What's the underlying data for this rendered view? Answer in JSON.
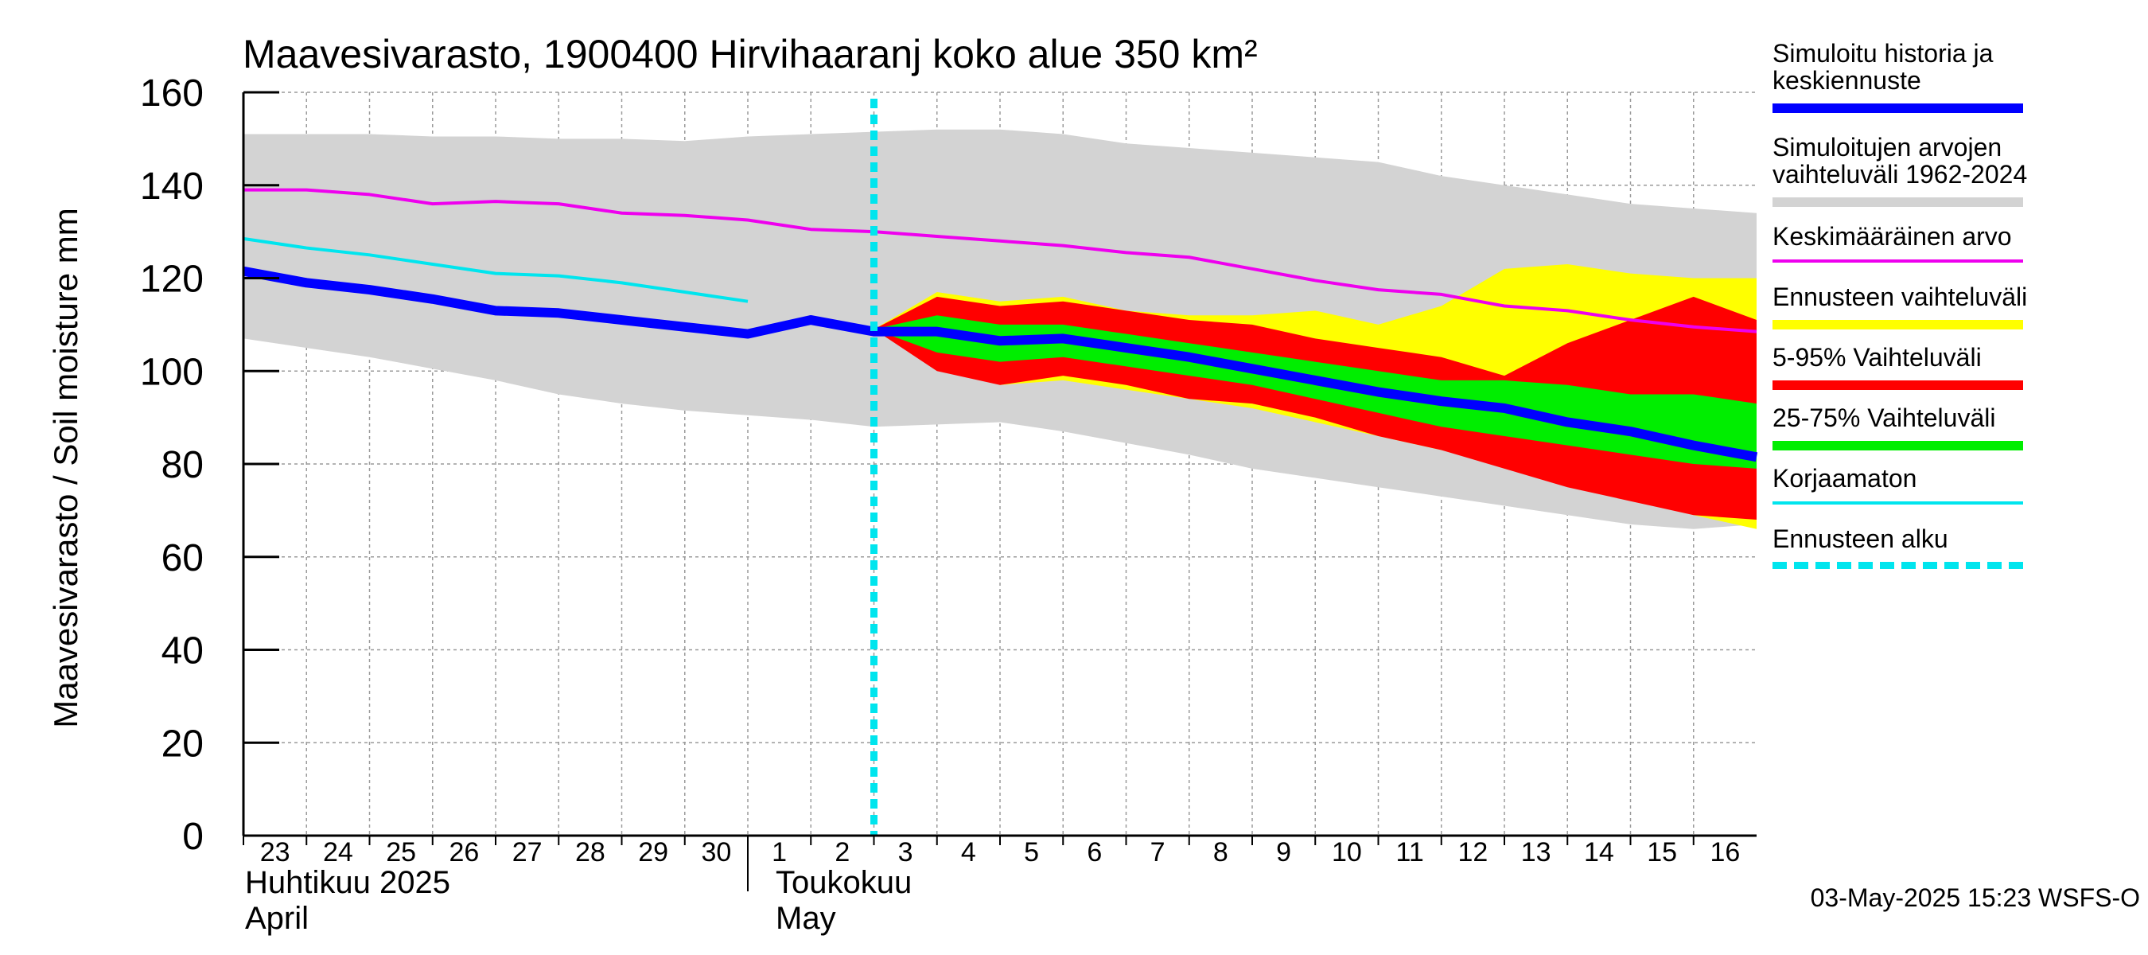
{
  "chart_data": {
    "type": "area",
    "title": "Maavesivarasto, 1900400 Hirvihaaranj koko alue 350 km²",
    "ylabel": "Maavesivarasto / Soil moisture   mm",
    "ylim": [
      0,
      160
    ],
    "yticks": [
      0,
      20,
      40,
      60,
      80,
      100,
      120,
      140,
      160
    ],
    "grid": true,
    "xlim": [
      0,
      24
    ],
    "x_tick_labels": [
      "23",
      "24",
      "25",
      "26",
      "27",
      "28",
      "29",
      "30",
      "1",
      "2",
      "3",
      "4",
      "5",
      "6",
      "7",
      "8",
      "9",
      "10",
      "11",
      "12",
      "13",
      "14",
      "15",
      "16"
    ],
    "month_labels": [
      {
        "fi": "Huhtikuu  2025",
        "en": "April",
        "start_index": 0
      },
      {
        "fi": "Toukokuu",
        "en": "May",
        "start_index": 8
      }
    ],
    "forecast_start": 10,
    "legend_placement": "right",
    "timestamp": "03-May-2025 15:23 WSFS-O",
    "series": [
      {
        "name": "Simuloitujen arvojen vaihteluväli 1962-2024",
        "kind": "band",
        "color": "#d3d3d3",
        "x": [
          0,
          1,
          2,
          3,
          4,
          5,
          6,
          7,
          8,
          9,
          10,
          11,
          12,
          13,
          14,
          15,
          16,
          17,
          18,
          19,
          20,
          21,
          22,
          23,
          24
        ],
        "upper": [
          151,
          151,
          151,
          150.5,
          150.5,
          150,
          150,
          149.5,
          150.5,
          151,
          151.5,
          152,
          152,
          151,
          149,
          148,
          147,
          146,
          145,
          142,
          140,
          138,
          136,
          135,
          134
        ],
        "lower": [
          107,
          105,
          103,
          100.5,
          98,
          95,
          93,
          91.5,
          90.5,
          89.5,
          88,
          88.5,
          89,
          87,
          84.5,
          82,
          79,
          77,
          75,
          73,
          71,
          69,
          67,
          66,
          67
        ]
      },
      {
        "name": "Ennusteen vaihteluväli",
        "kind": "band",
        "color": "#ffff00",
        "x": [
          10,
          11,
          12,
          13,
          14,
          15,
          16,
          17,
          18,
          19,
          20,
          21,
          22,
          23,
          24
        ],
        "upper": [
          109,
          117,
          115,
          116,
          113,
          112,
          112,
          113,
          110,
          114,
          122,
          123,
          121,
          120,
          120
        ],
        "lower": [
          109,
          101,
          97,
          98,
          96,
          94,
          92,
          89,
          86,
          83,
          80,
          77,
          73,
          69,
          66
        ]
      },
      {
        "name": "5-95% Vaihteluväli",
        "kind": "band",
        "color": "#ff0000",
        "x": [
          10,
          11,
          12,
          13,
          14,
          15,
          16,
          17,
          18,
          19,
          20,
          21,
          22,
          23,
          24
        ],
        "upper": [
          109,
          116,
          114,
          115,
          113,
          111,
          110,
          107,
          105,
          103,
          99,
          106,
          111,
          116,
          111
        ],
        "lower": [
          109,
          100,
          97,
          99,
          97,
          94,
          93,
          90,
          86,
          83,
          79,
          75,
          72,
          69,
          68
        ]
      },
      {
        "name": "25-75% Vaihteluväli",
        "kind": "band",
        "color": "#00ee00",
        "x": [
          10,
          11,
          12,
          13,
          14,
          15,
          16,
          17,
          18,
          19,
          20,
          21,
          22,
          23,
          24
        ],
        "upper": [
          109,
          112,
          110,
          110,
          108,
          106,
          104,
          102,
          100,
          98,
          98,
          97,
          95,
          95,
          93
        ],
        "lower": [
          109,
          104,
          102,
          103,
          101,
          99,
          97,
          94,
          91,
          88,
          86,
          84,
          82,
          80,
          79
        ]
      },
      {
        "name": "Keskimääräinen arvo",
        "kind": "line",
        "color": "#ee00ee",
        "width": 4,
        "x": [
          0,
          1,
          2,
          3,
          4,
          5,
          6,
          7,
          8,
          9,
          10,
          11,
          12,
          13,
          14,
          15,
          16,
          17,
          18,
          19,
          20,
          21,
          22,
          23,
          24
        ],
        "values": [
          139,
          139,
          138,
          136,
          136.5,
          136,
          134,
          133.5,
          132.5,
          130.5,
          130,
          129,
          128,
          127,
          125.5,
          124.5,
          122,
          119.5,
          117.5,
          116.5,
          114,
          113,
          111,
          109.5,
          108.5
        ]
      },
      {
        "name": "Korjaamaton",
        "kind": "line",
        "color": "#00e5ee",
        "width": 4,
        "x": [
          0,
          1,
          2,
          3,
          4,
          5,
          6,
          7,
          8
        ],
        "values": [
          128.5,
          126.5,
          125,
          123,
          121,
          120.5,
          119,
          117,
          115
        ]
      },
      {
        "name": "Simuloitu historia ja keskiennuste",
        "kind": "line",
        "color": "#0000ff",
        "width": 12,
        "x": [
          0,
          1,
          2,
          3,
          4,
          5,
          6,
          7,
          8,
          9,
          10,
          11,
          12,
          13,
          14,
          15,
          16,
          17,
          18,
          19,
          20,
          21,
          22,
          23,
          24
        ],
        "values": [
          121.5,
          119,
          117.5,
          115.5,
          113,
          112.5,
          111,
          109.5,
          108,
          111,
          108.5,
          108.5,
          106.5,
          107,
          105,
          103,
          100.5,
          98,
          95.5,
          93.5,
          92,
          89,
          87,
          84,
          81.5
        ]
      }
    ]
  },
  "legend": [
    {
      "label": "Simuloitu historia ja\nkeskiennuste",
      "color": "#0000ff",
      "style": "thick"
    },
    {
      "label": "Simuloitujen arvojen\nvaihteluväli 1962-2024",
      "color": "#d3d3d3",
      "style": "thick"
    },
    {
      "label": "Keskimääräinen arvo",
      "color": "#ee00ee",
      "style": "thin"
    },
    {
      "label": "Ennusteen vaihteluväli",
      "color": "#ffff00",
      "style": "thick"
    },
    {
      "label": "5-95% Vaihteluväli",
      "color": "#ff0000",
      "style": "thick"
    },
    {
      "label": "25-75% Vaihteluväli",
      "color": "#00ee00",
      "style": "thick"
    },
    {
      "label": "Korjaamaton",
      "color": "#00e5ee",
      "style": "thin"
    },
    {
      "label": "Ennusteen alku",
      "color": "#00e5ee",
      "style": "dashed"
    }
  ]
}
